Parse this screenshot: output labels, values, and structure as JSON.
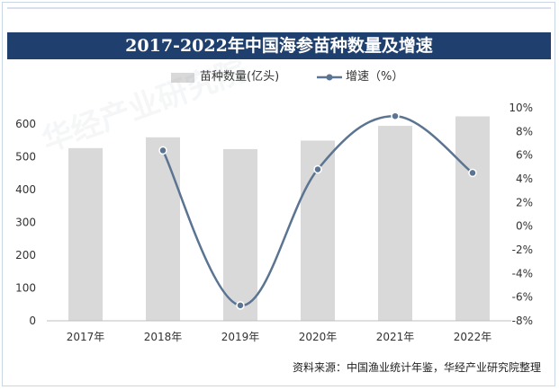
{
  "chart_data": {
    "type": "bar",
    "title": "2017-2022年中国海参苗种数量及增速",
    "categories": [
      "2017年",
      "2018年",
      "2019年",
      "2020年",
      "2021年",
      "2022年"
    ],
    "series": [
      {
        "name": "苗种数量(亿头)",
        "kind": "bar",
        "axis": "left",
        "values": [
          527,
          560,
          524,
          550,
          595,
          624
        ]
      },
      {
        "name": "增速（%）",
        "kind": "line",
        "axis": "right",
        "values": [
          null,
          6.4,
          -6.7,
          4.8,
          9.3,
          4.5
        ]
      }
    ],
    "y_left": {
      "ylim": [
        0,
        650
      ],
      "ticks": [
        "0",
        "100",
        "200",
        "300",
        "400",
        "500",
        "600"
      ]
    },
    "y_right": {
      "ylim": [
        -8,
        10
      ],
      "ticks": [
        "-8%",
        "-6%",
        "-4%",
        "-2%",
        "0%",
        "2%",
        "4%",
        "6%",
        "8%",
        "10%"
      ]
    },
    "legend_position": "top",
    "grid": false,
    "colors": {
      "bar": "#d9d9d9",
      "line": "#5b7491",
      "title_bg": "#1f3f6e"
    }
  },
  "source": "资料来源：中国渔业统计年鉴，华经产业研究院整理",
  "watermark": "华经产业研究院"
}
